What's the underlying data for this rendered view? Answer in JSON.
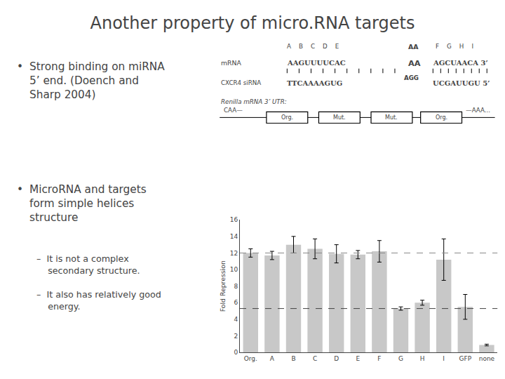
{
  "chart_data": {
    "type": "bar",
    "title": "Another property of micro.RNA targets",
    "categories": [
      "Org.",
      "A",
      "B",
      "C",
      "D",
      "E",
      "F",
      "G",
      "H",
      "I",
      "GFP",
      "none"
    ],
    "values": [
      12.0,
      11.7,
      13.0,
      12.5,
      11.9,
      11.8,
      12.2,
      5.3,
      6.0,
      11.2,
      5.5,
      0.9
    ],
    "errors": [
      0.5,
      0.5,
      1.0,
      1.2,
      1.1,
      0.5,
      1.3,
      0.2,
      0.3,
      2.5,
      1.5,
      0.1
    ],
    "color": "#C8C8C8",
    "ylabel": "Fold Repression",
    "ylim": [
      0,
      16
    ],
    "yticks": [
      0,
      2,
      4,
      6,
      8,
      10,
      12,
      14,
      16
    ],
    "grid": false,
    "reference_lines": [
      {
        "value": 12.0,
        "color": "#888888"
      },
      {
        "value": 5.3,
        "color": "#444444"
      }
    ],
    "annotations": [
      "•",
      "Strong binding on miRNA\n5’ end. (Doench and\nSharp 2004)",
      "•",
      "MicroRNA and targets\nform simple helices\nstructure",
      "–  It is not a complex\n    secondary structure.",
      "–  It also has relatively good\n    energy.",
      "A    B    C    D    E",
      "AA",
      "F    G    H    I",
      "mRNA",
      "AAGUUUUCAC",
      "AA",
      "AGCUAACA 3’",
      "CXCR4 siRNA",
      "TTCAAAAGUG",
      "AGG",
      "UCGAUUGU 5’",
      "Renilla mRNA 3’ UTR:",
      "CAA—",
      "Org.",
      "Mut.",
      "Mut.",
      "Org.",
      "—AAA..."
    ]
  }
}
